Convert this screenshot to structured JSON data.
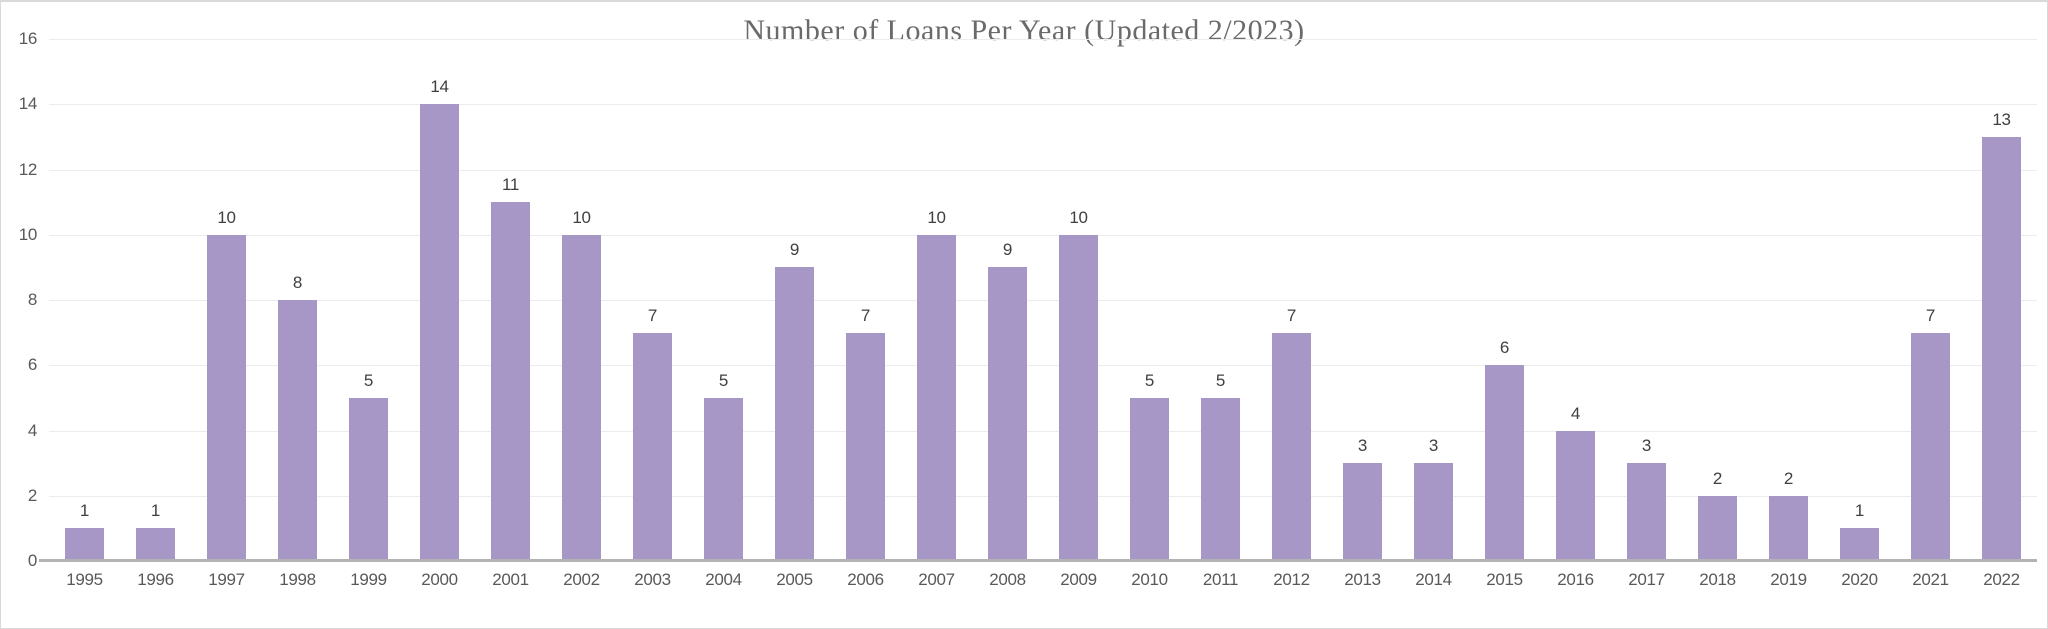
{
  "title": "Number of Loans Per Year (Updated 2/2023)",
  "colors": {
    "bar": "#a797c6",
    "gridline": "#ececec",
    "axis_line": "#b3b3b3",
    "axis_label_text": "#595959",
    "value_label_text": "#404040",
    "title_text": "#6a6a6a",
    "background": "#ffffff",
    "border": "#d9d9d9"
  },
  "chart_data": {
    "type": "bar",
    "title": "Number of Loans Per Year (Updated 2/2023)",
    "categories": [
      "1995",
      "1996",
      "1997",
      "1998",
      "1999",
      "2000",
      "2001",
      "2002",
      "2003",
      "2004",
      "2005",
      "2006",
      "2007",
      "2008",
      "2009",
      "2010",
      "2011",
      "2012",
      "2013",
      "2014",
      "2015",
      "2016",
      "2017",
      "2018",
      "2019",
      "2020",
      "2021",
      "2022"
    ],
    "values": [
      1,
      1,
      10,
      8,
      5,
      14,
      11,
      10,
      7,
      5,
      9,
      7,
      10,
      9,
      10,
      5,
      5,
      7,
      3,
      3,
      6,
      4,
      3,
      2,
      2,
      1,
      7,
      13
    ],
    "xlabel": "",
    "ylabel": "",
    "ylim": [
      0,
      16
    ],
    "yticks": [
      0,
      2,
      4,
      6,
      8,
      10,
      12,
      14,
      16
    ],
    "grid": true,
    "legend": false,
    "bar_value_labels": true
  }
}
